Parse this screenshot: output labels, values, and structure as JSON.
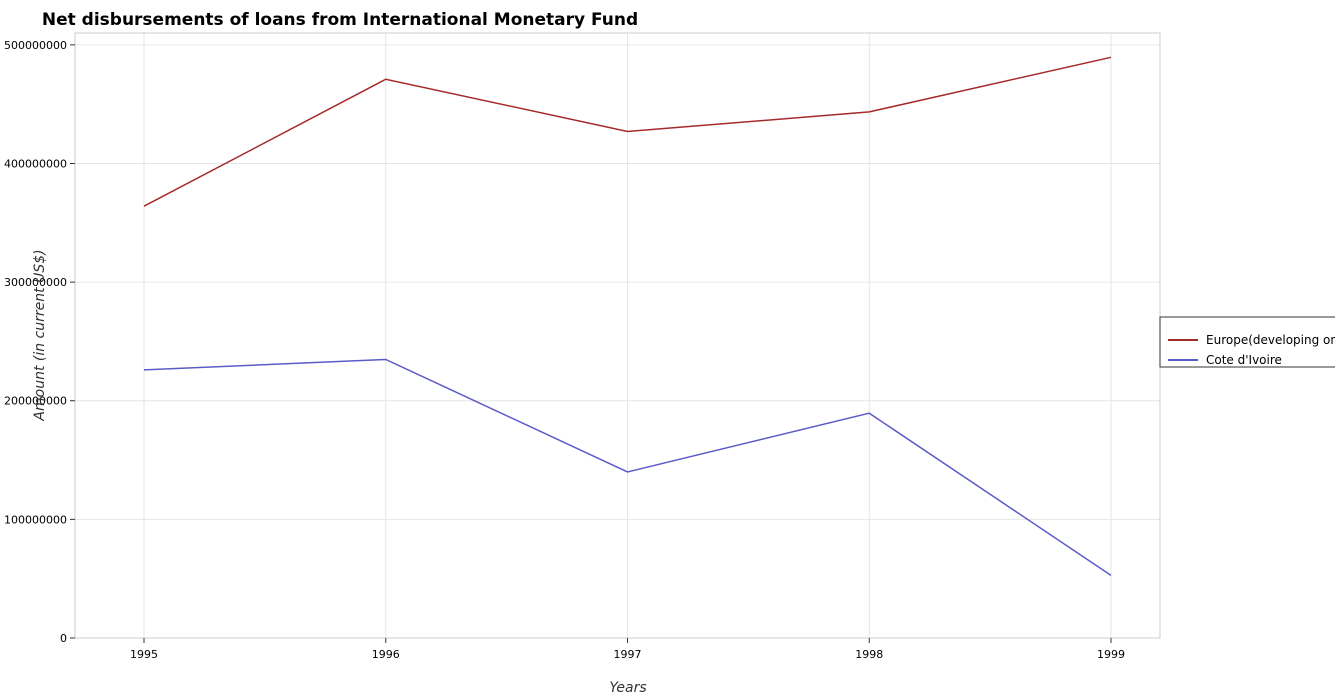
{
  "chart_data": {
    "type": "line",
    "title": "Net disbursements of loans from International Monetary Fund",
    "xlabel": "Years",
    "ylabel": "Amount (in current US$)",
    "categories": [
      "1995",
      "1996",
      "1997",
      "1998",
      "1999"
    ],
    "ylim": [
      0,
      510000000
    ],
    "yticks": [
      0,
      100000000,
      200000000,
      300000000,
      400000000,
      500000000
    ],
    "ytick_labels": [
      "0",
      "100000000",
      "200000000",
      "300000000",
      "400000000",
      "500000000"
    ],
    "grid": true,
    "legend_position": "right",
    "series": [
      {
        "name": "Europe(developing only)",
        "color": "#a52a2a",
        "values": [
          364000000,
          471000000,
          427000000,
          443500000,
          489500000
        ]
      },
      {
        "name": "Cote d'Ivoire",
        "color": "#5b5bc8",
        "values": [
          226000000,
          234800000,
          140000000,
          189500000,
          52800000
        ]
      }
    ]
  }
}
